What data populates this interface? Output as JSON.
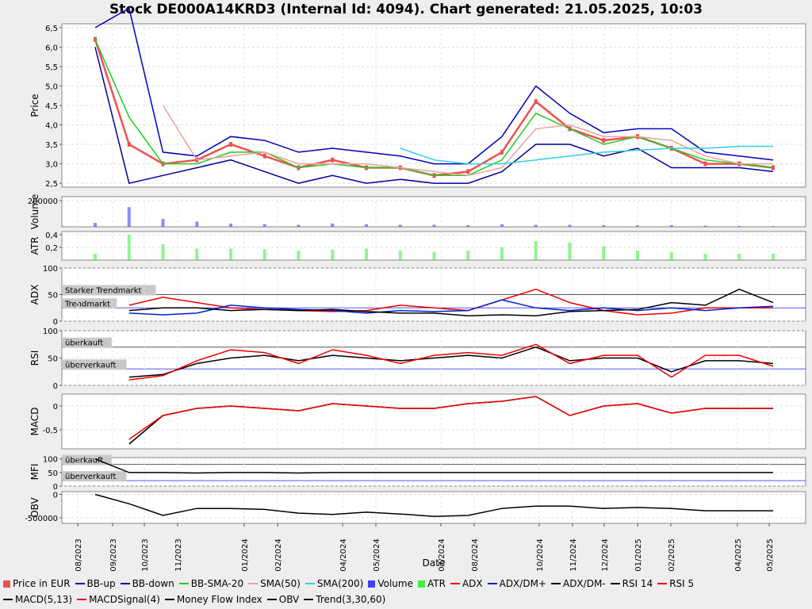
{
  "title": "Stock DE000A14KRD3 (Internal Id: 4094). Chart generated: 21.05.2025, 10:03",
  "xlabel": "Date",
  "x_ticks": [
    "08/2023",
    "09/2023",
    "10/2023",
    "11/2023",
    "01/2024",
    "02/2024",
    "04/2024",
    "05/2024",
    "07/2024",
    "08/2024",
    "10/2024",
    "11/2024",
    "12/2024",
    "01/2025",
    "02/2025",
    "04/2025",
    "05/2025"
  ],
  "panels": {
    "price": {
      "ylabel": "Price",
      "ticks": [
        "6,5",
        "6,0",
        "5,5",
        "5,0",
        "4,5",
        "4,0",
        "3,5",
        "3,0",
        "2,5"
      ]
    },
    "volume": {
      "ylabel": "Volume",
      "ticks": [
        "200000"
      ]
    },
    "atr": {
      "ylabel": "ATR",
      "ticks": [
        "0,4",
        "0,2"
      ]
    },
    "adx": {
      "ylabel": "ADX",
      "ticks": [
        "100",
        "50",
        "0"
      ],
      "labels": [
        "Starker Trendmarkt",
        "Trendmarkt"
      ]
    },
    "rsi": {
      "ylabel": "RSI",
      "ticks": [
        "100",
        "50",
        "0"
      ],
      "labels": [
        "überkauft",
        "überverkauft"
      ]
    },
    "macd": {
      "ylabel": "MACD",
      "ticks": [
        "0",
        "-0,5"
      ]
    },
    "mfi": {
      "ylabel": "MFI",
      "ticks": [
        "100",
        "50",
        "0"
      ],
      "labels": [
        "überkauft",
        "überverkauft"
      ]
    },
    "obv": {
      "ylabel": "OBV",
      "ticks": [
        "0",
        "-500000"
      ]
    }
  },
  "legend": [
    {
      "label": "Price in EUR",
      "color": "#f05050",
      "kind": "box"
    },
    {
      "label": "BB-up",
      "color": "#0000c0",
      "kind": "line"
    },
    {
      "label": "BB-down",
      "color": "#0000a0",
      "kind": "line"
    },
    {
      "label": "BB-SMA-20",
      "color": "#22cc22",
      "kind": "line"
    },
    {
      "label": "SMA(50)",
      "color": "#f0a0a0",
      "kind": "line"
    },
    {
      "label": "SMA(200)",
      "color": "#30d0e0",
      "kind": "line"
    },
    {
      "label": "Volume",
      "color": "#4040ff",
      "kind": "box"
    },
    {
      "label": "ATR",
      "color": "#44ee44",
      "kind": "box"
    },
    {
      "label": "ADX",
      "color": "#ee0000",
      "kind": "marker"
    },
    {
      "label": "ADX/DM+",
      "color": "#0020d0",
      "kind": "marker"
    },
    {
      "label": "ADX/DM-",
      "color": "#000000",
      "kind": "marker"
    },
    {
      "label": "RSI 14",
      "color": "#000000",
      "kind": "marker"
    },
    {
      "label": "RSI 5",
      "color": "#ee0000",
      "kind": "marker"
    },
    {
      "label": "MACD(5,13)",
      "color": "#000000",
      "kind": "marker"
    },
    {
      "label": "MACDSignal(4)",
      "color": "#ee0000",
      "kind": "marker"
    },
    {
      "label": "Money Flow Index",
      "color": "#000000",
      "kind": "marker"
    },
    {
      "label": "OBV",
      "color": "#000000",
      "kind": "marker"
    },
    {
      "label": "Trend(3,30,60)",
      "color": "#000000",
      "kind": "line"
    }
  ],
  "chart_data": {
    "type": "line",
    "title": "Stock DE000A14KRD3 (Internal Id: 4094). Chart generated: 21.05.2025, 10:03",
    "xlabel": "Date",
    "x": [
      "2023-09",
      "2023-10",
      "2023-11",
      "2023-12",
      "2024-01",
      "2024-02",
      "2024-03",
      "2024-04",
      "2024-05",
      "2024-06",
      "2024-07",
      "2024-08",
      "2024-09",
      "2024-10",
      "2024-11",
      "2024-12",
      "2025-01",
      "2025-02",
      "2025-03",
      "2025-04",
      "2025-05"
    ],
    "series": [
      {
        "name": "Price in EUR",
        "panel": "price",
        "values": [
          6.2,
          3.5,
          3.0,
          3.1,
          3.5,
          3.2,
          2.9,
          3.1,
          2.9,
          2.9,
          2.7,
          2.8,
          3.3,
          4.6,
          3.9,
          3.6,
          3.7,
          3.4,
          3.0,
          3.0,
          2.9
        ]
      },
      {
        "name": "BB-up",
        "panel": "price",
        "values": [
          6.5,
          7.0,
          3.3,
          3.2,
          3.7,
          3.6,
          3.3,
          3.4,
          3.3,
          3.2,
          3.0,
          3.0,
          3.7,
          5.0,
          4.3,
          3.8,
          3.9,
          3.9,
          3.3,
          3.2,
          3.1
        ]
      },
      {
        "name": "BB-down",
        "panel": "price",
        "values": [
          6.0,
          2.5,
          2.7,
          2.9,
          3.1,
          2.8,
          2.5,
          2.7,
          2.5,
          2.6,
          2.5,
          2.5,
          2.8,
          3.5,
          3.5,
          3.2,
          3.4,
          2.9,
          2.9,
          2.9,
          2.8
        ]
      },
      {
        "name": "BB-SMA-20",
        "panel": "price",
        "values": [
          6.2,
          4.2,
          3.0,
          3.0,
          3.3,
          3.3,
          2.9,
          3.0,
          2.9,
          2.9,
          2.7,
          2.7,
          3.1,
          4.3,
          3.9,
          3.5,
          3.7,
          3.4,
          3.1,
          3.0,
          2.9
        ]
      },
      {
        "name": "SMA(50)",
        "panel": "price",
        "values": [
          null,
          null,
          4.5,
          3.1,
          3.2,
          3.3,
          3.0,
          3.0,
          3.0,
          2.9,
          2.8,
          2.7,
          2.9,
          3.9,
          4.0,
          3.7,
          3.7,
          3.6,
          3.2,
          3.0,
          3.0
        ]
      },
      {
        "name": "SMA(200)",
        "panel": "price",
        "values": [
          null,
          null,
          null,
          null,
          null,
          null,
          null,
          null,
          null,
          3.4,
          3.1,
          3.0,
          3.0,
          3.1,
          3.2,
          3.3,
          3.35,
          3.4,
          3.4,
          3.45,
          3.45
        ]
      },
      {
        "name": "ADX",
        "panel": "adx",
        "values": [
          null,
          30,
          45,
          35,
          25,
          22,
          20,
          18,
          20,
          30,
          25,
          20,
          40,
          60,
          35,
          20,
          12,
          15,
          25,
          25,
          25
        ]
      },
      {
        "name": "ADX/DM+",
        "panel": "adx",
        "values": [
          null,
          15,
          12,
          15,
          30,
          25,
          22,
          20,
          15,
          20,
          18,
          20,
          40,
          25,
          20,
          25,
          20,
          25,
          20,
          25,
          28
        ]
      },
      {
        "name": "ADX/DM-",
        "panel": "adx",
        "values": [
          null,
          20,
          25,
          25,
          20,
          22,
          20,
          22,
          18,
          15,
          15,
          10,
          12,
          10,
          18,
          20,
          22,
          35,
          30,
          60,
          35
        ]
      },
      {
        "name": "RSI 14",
        "panel": "rsi",
        "values": [
          null,
          15,
          20,
          40,
          50,
          55,
          45,
          55,
          50,
          45,
          50,
          55,
          50,
          70,
          45,
          50,
          50,
          25,
          45,
          45,
          40
        ]
      },
      {
        "name": "RSI 5",
        "panel": "rsi",
        "values": [
          null,
          10,
          18,
          45,
          65,
          60,
          40,
          65,
          55,
          40,
          55,
          60,
          55,
          75,
          40,
          55,
          55,
          15,
          55,
          55,
          35
        ]
      },
      {
        "name": "MACD(5,13)",
        "panel": "macd",
        "values": [
          null,
          -0.8,
          -0.2,
          -0.05,
          0.0,
          -0.05,
          -0.1,
          0.05,
          0.0,
          -0.05,
          -0.05,
          0.05,
          0.1,
          0.2,
          -0.2,
          0.0,
          0.05,
          -0.15,
          -0.05,
          -0.05,
          -0.05
        ]
      },
      {
        "name": "MACDSignal(4)",
        "panel": "macd",
        "values": [
          null,
          -0.7,
          -0.2,
          -0.05,
          0.0,
          -0.05,
          -0.1,
          0.05,
          0.0,
          -0.05,
          -0.05,
          0.05,
          0.1,
          0.2,
          -0.2,
          0.0,
          0.05,
          -0.15,
          -0.05,
          -0.05,
          -0.05
        ]
      },
      {
        "name": "Money Flow Index",
        "panel": "mfi",
        "values": [
          100,
          50,
          50,
          48,
          50,
          50,
          48,
          50,
          50,
          50,
          50,
          50,
          50,
          50,
          50,
          50,
          50,
          50,
          50,
          50,
          50
        ]
      },
      {
        "name": "OBV",
        "panel": "obv",
        "values": [
          0,
          -200000,
          -450000,
          -300000,
          -300000,
          -320000,
          -400000,
          -430000,
          -380000,
          -420000,
          -470000,
          -450000,
          -300000,
          -250000,
          -250000,
          -300000,
          -280000,
          -300000,
          -350000,
          -350000,
          -350000
        ]
      },
      {
        "name": "Volume",
        "panel": "volume",
        "values": [
          30000,
          150000,
          60000,
          40000,
          25000,
          20000,
          15000,
          25000,
          20000,
          15000,
          15000,
          12000,
          20000,
          15000,
          15000,
          12000,
          10000,
          12000,
          8000,
          6000,
          5000
        ]
      },
      {
        "name": "ATR",
        "panel": "atr",
        "values": [
          0.1,
          0.4,
          0.25,
          0.18,
          0.18,
          0.17,
          0.15,
          0.17,
          0.18,
          0.15,
          0.13,
          0.15,
          0.2,
          0.3,
          0.28,
          0.22,
          0.15,
          0.12,
          0.1,
          0.1,
          0.1
        ]
      }
    ]
  }
}
